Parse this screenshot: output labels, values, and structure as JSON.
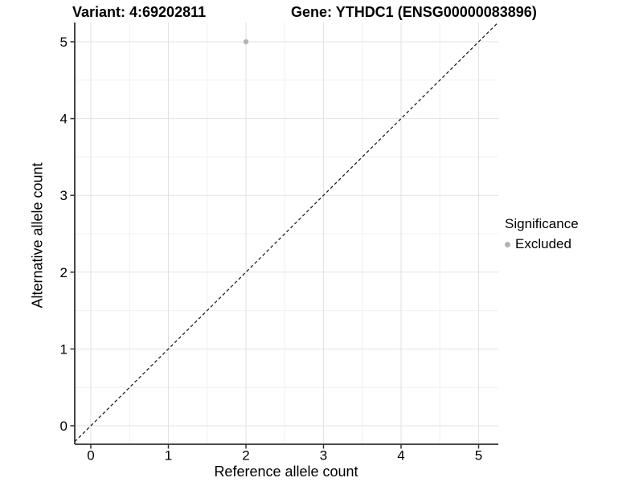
{
  "header": {
    "variant_title": "Variant: 4:69202811",
    "gene_title": "Gene: YTHDC1 (ENSG00000083896)"
  },
  "axes": {
    "x_label": "Reference allele count",
    "y_label": "Alternative allele count"
  },
  "legend": {
    "title": "Significance",
    "excluded_label": "Excluded"
  },
  "colors": {
    "point": "#b3b3b3",
    "major_grid": "#e2e2e2",
    "minor_grid": "#f0f0f0",
    "axis_line": "#333333",
    "identity_line": "#111111"
  },
  "chart_data": {
    "type": "scatter",
    "title": "Variant: 4:69202811        Gene: YTHDC1 (ENSG00000083896)",
    "xlabel": "Reference allele count",
    "ylabel": "Alternative allele count",
    "xlim": [
      -0.25,
      5.25
    ],
    "ylim": [
      -0.25,
      5.25
    ],
    "xticks": [
      0,
      1,
      2,
      3,
      4,
      5
    ],
    "yticks": [
      0,
      1,
      2,
      3,
      4,
      5
    ],
    "grid": "major and minor gridlines, white panel background",
    "reference_line": {
      "kind": "identity y=x",
      "style": "dashed",
      "color": "#111111"
    },
    "legend_position": "right",
    "series": [
      {
        "name": "Excluded",
        "color": "#b3b3b3",
        "marker": "circle",
        "points": [
          {
            "x": 2,
            "y": 5
          }
        ]
      }
    ]
  }
}
